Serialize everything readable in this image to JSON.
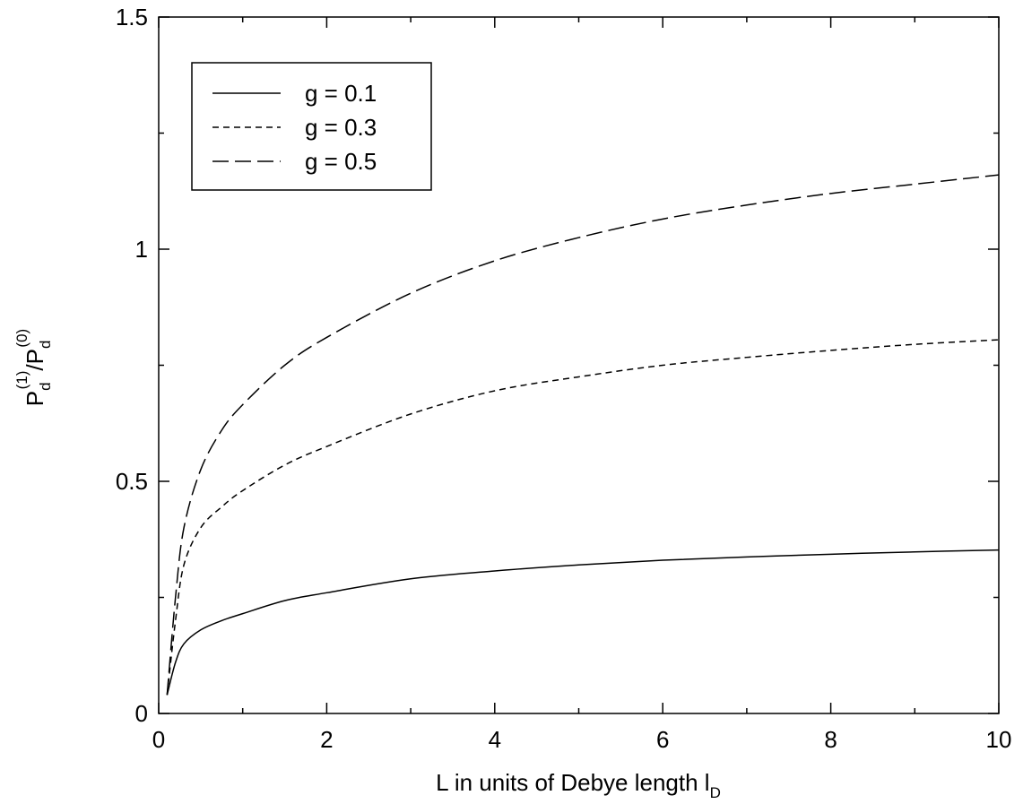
{
  "chart_data": {
    "type": "line",
    "title": "",
    "xlabel": "L in units of Debye length l",
    "xlabel_sub": "D",
    "ylabel": {
      "base1": "P",
      "sub1": "d",
      "sup1": "(1)",
      "slash": "/",
      "base2": "P",
      "sub2": "d",
      "sup2": "(0)"
    },
    "xlim": [
      0,
      10
    ],
    "ylim": [
      0,
      1.5
    ],
    "xticks": [
      0,
      2,
      4,
      6,
      8,
      10
    ],
    "xtick_labels": [
      "0",
      "2",
      "4",
      "6",
      "8",
      "10"
    ],
    "yticks": [
      0,
      0.5,
      1,
      1.5
    ],
    "ytick_labels": [
      "0",
      "0.5",
      "1",
      "1.5"
    ],
    "grid": false,
    "legend_position": "top-left",
    "series": [
      {
        "name": "g = 0.1",
        "dash": "solid",
        "x": [
          0.1,
          0.2,
          0.3,
          0.5,
          0.75,
          1,
          1.5,
          2,
          3,
          4,
          5,
          6,
          7,
          8,
          9,
          10
        ],
        "y": [
          0.04,
          0.11,
          0.15,
          0.18,
          0.2,
          0.215,
          0.243,
          0.26,
          0.29,
          0.307,
          0.32,
          0.33,
          0.337,
          0.343,
          0.348,
          0.352
        ]
      },
      {
        "name": "g = 0.3",
        "dash": "short-dash",
        "x": [
          0.1,
          0.2,
          0.3,
          0.5,
          0.75,
          1,
          1.5,
          2,
          3,
          4,
          5,
          6,
          7,
          8,
          9,
          10
        ],
        "y": [
          0.04,
          0.2,
          0.32,
          0.4,
          0.445,
          0.48,
          0.535,
          0.575,
          0.645,
          0.695,
          0.725,
          0.75,
          0.767,
          0.782,
          0.795,
          0.805
        ]
      },
      {
        "name": "g = 0.5",
        "dash": "long-dash",
        "x": [
          0.1,
          0.2,
          0.3,
          0.5,
          0.75,
          1,
          1.5,
          2,
          3,
          4,
          5,
          6,
          7,
          8,
          9,
          10
        ],
        "y": [
          0.04,
          0.25,
          0.4,
          0.525,
          0.61,
          0.665,
          0.75,
          0.81,
          0.905,
          0.975,
          1.025,
          1.065,
          1.095,
          1.12,
          1.14,
          1.16
        ]
      }
    ]
  }
}
